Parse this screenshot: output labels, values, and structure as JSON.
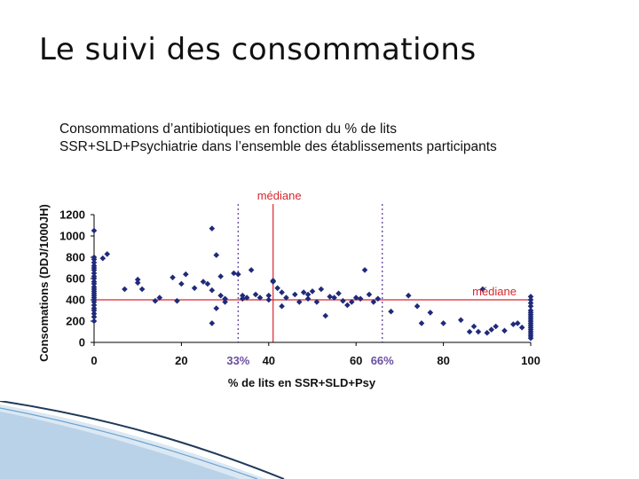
{
  "slide": {
    "title": "Le suivi des consommations",
    "subtitle_line1": "Consommations d’antibiotiques en fonction du % de lits",
    "subtitle_line2": "SSR+SLD+Psychiatrie dans l’ensemble des établissements participants"
  },
  "colors": {
    "points": "#1f2a7a",
    "median": "#d7262e",
    "dotted": "#6a4fa0",
    "axis": "#000000",
    "label_red": "#d7262e"
  },
  "chart_data": {
    "type": "scatter",
    "xlabel": "% de lits en SSR+SLD+Psy",
    "ylabel": "Consomations (DDJ/1000JH)",
    "xlim": [
      0,
      100
    ],
    "ylim": [
      0,
      1200
    ],
    "x_ticks": [
      "0",
      "20",
      "40",
      "60",
      "80",
      "100"
    ],
    "y_ticks": [
      "0",
      "200",
      "400",
      "600",
      "800",
      "1000",
      "1200"
    ],
    "grid": false,
    "median_x": 41,
    "median_y": 400,
    "median_x_label": "médiane",
    "median_y_label": "médiane",
    "dotted_x": [
      33,
      66
    ],
    "dotted_labels": [
      "33%",
      "66%"
    ],
    "points": [
      [
        0,
        1050
      ],
      [
        0,
        800
      ],
      [
        0,
        780
      ],
      [
        0,
        750
      ],
      [
        0,
        720
      ],
      [
        0,
        700
      ],
      [
        0,
        680
      ],
      [
        0,
        650
      ],
      [
        0,
        620
      ],
      [
        0,
        600
      ],
      [
        0,
        570
      ],
      [
        0,
        550
      ],
      [
        0,
        520
      ],
      [
        0,
        500
      ],
      [
        0,
        480
      ],
      [
        0,
        460
      ],
      [
        0,
        440
      ],
      [
        0,
        420
      ],
      [
        0,
        400
      ],
      [
        0,
        380
      ],
      [
        0,
        350
      ],
      [
        0,
        320
      ],
      [
        0,
        300
      ],
      [
        0,
        270
      ],
      [
        0,
        240
      ],
      [
        0,
        200
      ],
      [
        2,
        790
      ],
      [
        3,
        830
      ],
      [
        7,
        500
      ],
      [
        10,
        590
      ],
      [
        10,
        560
      ],
      [
        11,
        500
      ],
      [
        14,
        390
      ],
      [
        15,
        420
      ],
      [
        18,
        610
      ],
      [
        19,
        390
      ],
      [
        20,
        550
      ],
      [
        21,
        640
      ],
      [
        23,
        510
      ],
      [
        25,
        570
      ],
      [
        26,
        550
      ],
      [
        27,
        1070
      ],
      [
        27,
        180
      ],
      [
        27,
        490
      ],
      [
        28,
        320
      ],
      [
        28,
        820
      ],
      [
        29,
        440
      ],
      [
        29,
        620
      ],
      [
        30,
        410
      ],
      [
        30,
        380
      ],
      [
        32,
        650
      ],
      [
        33,
        640
      ],
      [
        34,
        410
      ],
      [
        34,
        440
      ],
      [
        35,
        420
      ],
      [
        36,
        680
      ],
      [
        37,
        450
      ],
      [
        38,
        420
      ],
      [
        40,
        440
      ],
      [
        40,
        400
      ],
      [
        41,
        570
      ],
      [
        41,
        580
      ],
      [
        42,
        510
      ],
      [
        43,
        470
      ],
      [
        43,
        340
      ],
      [
        44,
        420
      ],
      [
        46,
        450
      ],
      [
        47,
        380
      ],
      [
        48,
        470
      ],
      [
        49,
        410
      ],
      [
        49,
        450
      ],
      [
        50,
        480
      ],
      [
        51,
        380
      ],
      [
        52,
        500
      ],
      [
        53,
        250
      ],
      [
        54,
        430
      ],
      [
        55,
        420
      ],
      [
        56,
        460
      ],
      [
        57,
        390
      ],
      [
        58,
        350
      ],
      [
        59,
        380
      ],
      [
        60,
        420
      ],
      [
        61,
        410
      ],
      [
        62,
        680
      ],
      [
        63,
        450
      ],
      [
        64,
        380
      ],
      [
        65,
        410
      ],
      [
        68,
        290
      ],
      [
        72,
        440
      ],
      [
        74,
        340
      ],
      [
        75,
        180
      ],
      [
        77,
        280
      ],
      [
        80,
        180
      ],
      [
        84,
        210
      ],
      [
        86,
        100
      ],
      [
        87,
        150
      ],
      [
        88,
        100
      ],
      [
        89,
        500
      ],
      [
        90,
        90
      ],
      [
        91,
        120
      ],
      [
        92,
        150
      ],
      [
        94,
        110
      ],
      [
        96,
        170
      ],
      [
        97,
        180
      ],
      [
        98,
        140
      ],
      [
        100,
        430
      ],
      [
        100,
        400
      ],
      [
        100,
        370
      ],
      [
        100,
        340
      ],
      [
        100,
        300
      ],
      [
        100,
        280
      ],
      [
        100,
        260
      ],
      [
        100,
        240
      ],
      [
        100,
        220
      ],
      [
        100,
        200
      ],
      [
        100,
        180
      ],
      [
        100,
        160
      ],
      [
        100,
        140
      ],
      [
        100,
        120
      ],
      [
        100,
        100
      ],
      [
        100,
        80
      ],
      [
        100,
        60
      ],
      [
        100,
        40
      ]
    ]
  }
}
